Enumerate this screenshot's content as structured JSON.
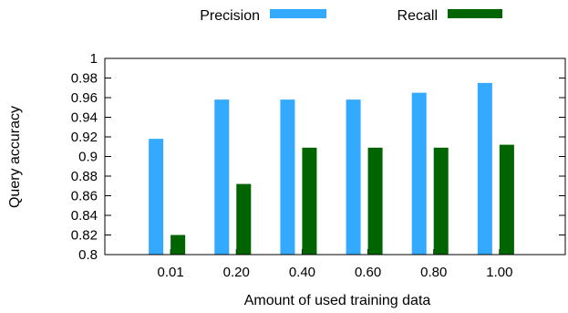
{
  "chart_data": {
    "type": "bar",
    "title": "",
    "xlabel": "Amount of used training data",
    "ylabel": "Query accuracy",
    "categories": [
      "0.01",
      "0.20",
      "0.40",
      "0.60",
      "0.80",
      "1.00"
    ],
    "series": [
      {
        "name": "Precision",
        "color": "#33aaff",
        "values": [
          0.918,
          0.958,
          0.958,
          0.958,
          0.965,
          0.975
        ]
      },
      {
        "name": "Recall",
        "color": "#006400",
        "values": [
          0.82,
          0.872,
          0.909,
          0.909,
          0.909,
          0.912
        ]
      }
    ],
    "ylim": [
      0.8,
      1.0
    ],
    "yticks": [
      "0.8",
      "0.82",
      "0.84",
      "0.86",
      "0.88",
      "0.9",
      "0.92",
      "0.94",
      "0.96",
      "0.98",
      "1"
    ],
    "grid": false,
    "legend_position": "top-center"
  }
}
